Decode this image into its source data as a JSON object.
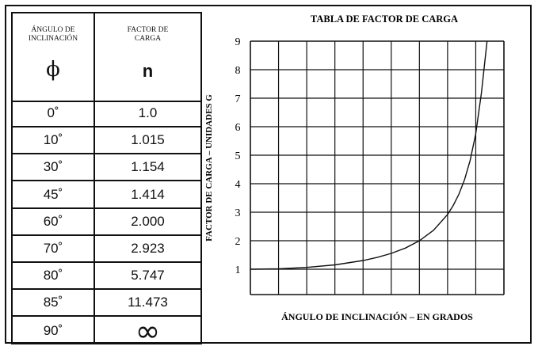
{
  "table": {
    "header_angle": "ÁNGULO DE\nINCLINACIÓN",
    "header_factor": "FACTOR DE\nCARGA",
    "symbol_angle": "ϕ",
    "symbol_factor": "n",
    "rows": [
      {
        "angle": "0˚",
        "factor": "1.0"
      },
      {
        "angle": "10˚",
        "factor": "1.015"
      },
      {
        "angle": "30˚",
        "factor": "1.154"
      },
      {
        "angle": "45˚",
        "factor": "1.414"
      },
      {
        "angle": "60˚",
        "factor": "2.000"
      },
      {
        "angle": "70˚",
        "factor": "2.923"
      },
      {
        "angle": "80˚",
        "factor": "5.747"
      },
      {
        "angle": "85˚",
        "factor": "11.473"
      },
      {
        "angle": "90˚",
        "factor": "∞"
      }
    ]
  },
  "chart_data": {
    "type": "line",
    "title": "TABLA DE FACTOR DE CARGA",
    "xlabel": "ÁNGULO DE INCLINACIÓN – EN GRADOS",
    "ylabel": "FACTOR DE CARGA – UNIDADES G",
    "xlim": [
      0,
      90
    ],
    "ylim": [
      0,
      9
    ],
    "y_ticks": [
      "1",
      "2",
      "3",
      "4",
      "5",
      "6",
      "7",
      "8",
      "9"
    ],
    "x_tick_labels_shown": false,
    "grid": true,
    "series": [
      {
        "x": [
          0,
          10,
          20,
          30,
          40,
          45,
          50,
          55,
          60,
          65,
          70,
          72,
          74,
          76,
          78,
          80,
          82,
          84
        ],
        "y": [
          1.0,
          1.015,
          1.064,
          1.154,
          1.305,
          1.414,
          1.556,
          1.743,
          2.0,
          2.366,
          2.923,
          3.236,
          3.628,
          4.134,
          4.81,
          5.747,
          7.185,
          9.0
        ]
      }
    ],
    "line_color": "#111111",
    "grid_color": "#111111"
  }
}
